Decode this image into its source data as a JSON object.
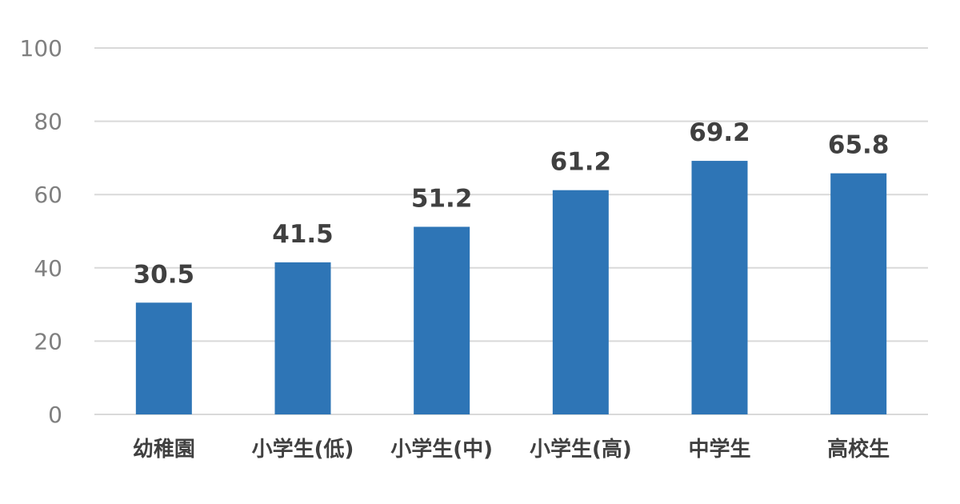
{
  "chart_data": {
    "type": "bar",
    "categories": [
      "幼稚園",
      "小学生(低)",
      "小学生(中)",
      "小学生(高)",
      "中学生",
      "高校生"
    ],
    "values": [
      30.5,
      41.5,
      51.2,
      61.2,
      69.2,
      65.8
    ],
    "data_labels": [
      "30.5",
      "41.5",
      "51.2",
      "61.2",
      "69.2",
      "65.8"
    ],
    "y_ticks": [
      "0",
      "20",
      "40",
      "60",
      "80",
      "100"
    ],
    "ylim": [
      0,
      100
    ],
    "grid": true,
    "legend": "none",
    "bar_color": "#2e75b6"
  }
}
